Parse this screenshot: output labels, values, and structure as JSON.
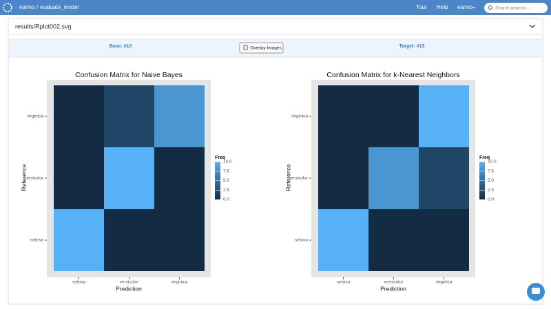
{
  "header": {
    "owner": "earino",
    "repo": "evaluate_model",
    "links": [
      "Tour",
      "Help",
      "earino"
    ],
    "search_placeholder": "Search projects..."
  },
  "file": {
    "path": "results/Rplot002.svg",
    "base": "Base: #10",
    "button": "Overlay Images",
    "target": "Target: #13"
  },
  "chart_data": [
    {
      "type": "heatmap",
      "title": "Confusion Matrix for Naive Bayes",
      "x_label": "Prediction",
      "y_label": "Reference",
      "x": [
        "setosa",
        "versicolor",
        "virginica"
      ],
      "y": [
        "virginica",
        "versicolor",
        "setosa"
      ],
      "values": [
        [
          0,
          2,
          8
        ],
        [
          0,
          10,
          0
        ],
        [
          10,
          0,
          0
        ]
      ],
      "legend_title": "Freq",
      "colorscale": [
        "#132b43",
        "#56b1f7"
      ],
      "zlim": [
        0,
        10
      ],
      "zticks": [
        {
          "value": 0,
          "label": "0.0"
        },
        {
          "value": 2.5,
          "label": "2.5"
        },
        {
          "value": 5,
          "label": "5.0"
        },
        {
          "value": 7.5,
          "label": "7.5"
        },
        {
          "value": 10,
          "label": "10.0"
        }
      ]
    },
    {
      "type": "heatmap",
      "title": "Confusion Matrix for k-Nearest Neighbors",
      "x_label": "Prediction",
      "y_label": "Reference",
      "x": [
        "setosa",
        "versicolor",
        "virginica"
      ],
      "y": [
        "virginica",
        "versicolor",
        "setosa"
      ],
      "values": [
        [
          0,
          0,
          10
        ],
        [
          0,
          8,
          2
        ],
        [
          10,
          0,
          0
        ]
      ],
      "legend_title": "Freq",
      "colorscale": [
        "#132b43",
        "#56b1f7"
      ],
      "zlim": [
        0,
        10
      ],
      "zticks": [
        {
          "value": 0,
          "label": "0.0"
        },
        {
          "value": 2.5,
          "label": "2.5"
        },
        {
          "value": 5,
          "label": "5.0"
        },
        {
          "value": 7.5,
          "label": "7.5"
        },
        {
          "value": 10,
          "label": "10.0"
        }
      ]
    }
  ]
}
